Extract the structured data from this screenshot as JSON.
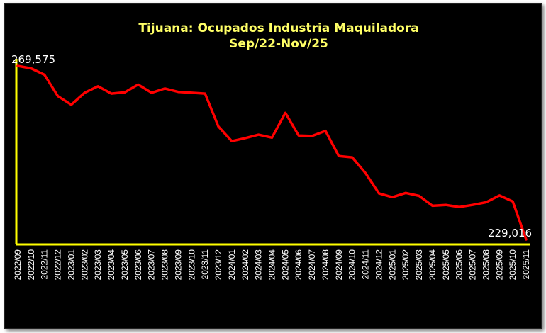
{
  "chart_data": {
    "type": "line",
    "title": "Tijuana: Ocupados Industria Maquiladora",
    "subtitle": "Sep/22-Nov/25",
    "x": [
      "2022/09",
      "2022/10",
      "2022/11",
      "2022/12",
      "2023/01",
      "2023/02",
      "2023/03",
      "2023/04",
      "2023/05",
      "2023/06",
      "2023/07",
      "2023/08",
      "2023/09",
      "2023/10",
      "2023/11",
      "2023/12",
      "2024/01",
      "2024/02",
      "2024/03",
      "2024/04",
      "2024/05",
      "2024/06",
      "2024/07",
      "2024/08",
      "2024/09",
      "2024/10",
      "2024/11",
      "2024/12",
      "2025/01",
      "2025/02",
      "2025/03",
      "2025/04",
      "2025/05",
      "2025/06",
      "2025/07",
      "2025/08",
      "2025/09",
      "2025/10",
      "2025/11"
    ],
    "series": [
      {
        "values": [
          269575,
          269000,
          267500,
          262500,
          260500,
          263300,
          264800,
          263100,
          263400,
          265200,
          263300,
          264300,
          263500,
          263300,
          263100,
          255400,
          252000,
          252700,
          253500,
          252800,
          258600,
          253300,
          253200,
          254400,
          248500,
          248200,
          244500,
          239800,
          238900,
          239900,
          239200,
          236900,
          237100,
          236600,
          237100,
          237700,
          239300,
          237900,
          229016
        ]
      }
    ],
    "annotations": [
      {
        "label": "269,575",
        "index": 0
      },
      {
        "label": "229,016",
        "index": 38
      }
    ],
    "ylim": [
      229016,
      269575
    ],
    "grid": false,
    "legend": "none",
    "colors": {
      "background": "#000000",
      "line": "#ff0000",
      "axis": "#ffff00",
      "title": "#ffff66",
      "labels": "#ffffff"
    }
  }
}
